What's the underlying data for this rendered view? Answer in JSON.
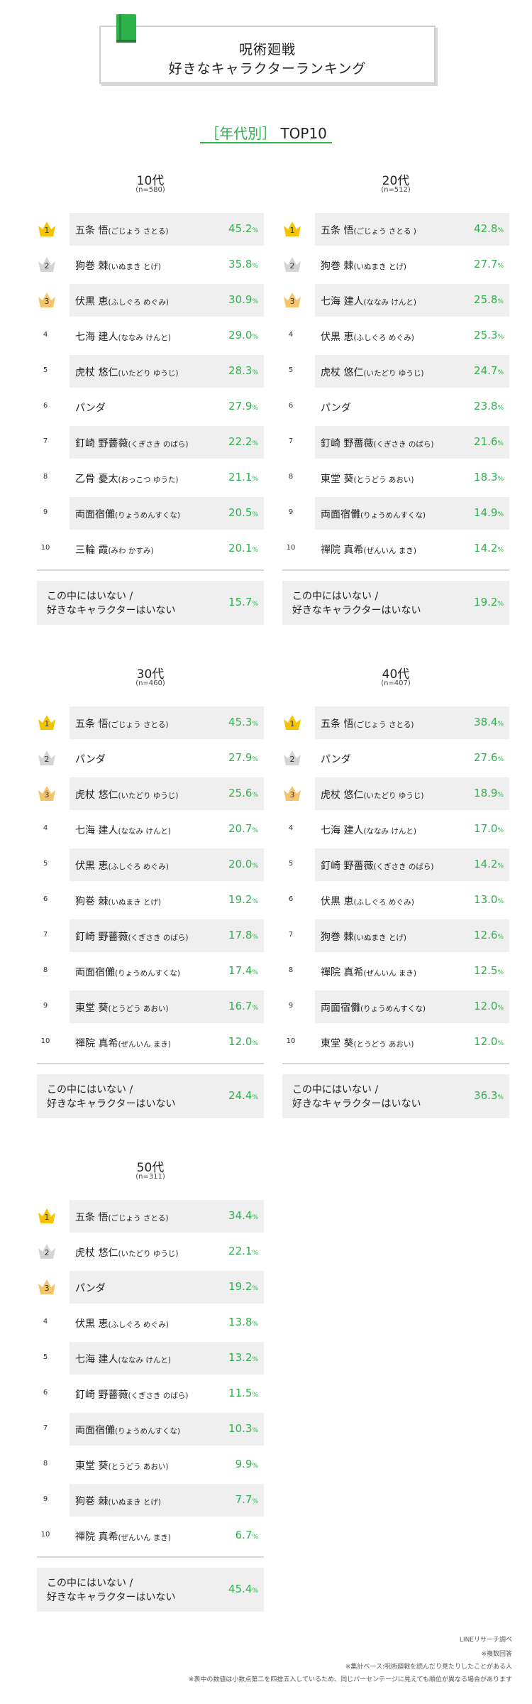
{
  "header": {
    "title_line1": "呪術廻戦",
    "title_line2": "好きなキャラクターランキング",
    "icon": "book-icon"
  },
  "section": {
    "bracket_open": "［",
    "label": "年代別",
    "bracket_close": "］",
    "top": "TOP10"
  },
  "colors": {
    "accent": "#2eb24b",
    "gold": "#f5c400",
    "silver": "#d4d4d4",
    "bronze": "#f3c46b",
    "row_shade": "#efefef"
  },
  "other_label_line1": "この中にはいない /",
  "other_label_line2": "好きなキャラクターはいない",
  "percent_unit": "%",
  "chart_data": [
    {
      "type": "table",
      "title": "10代",
      "n": "(n=580)",
      "rows": [
        {
          "rank": "1",
          "name": "五条 悟",
          "kana": "(ごじょう さとる)",
          "value": "45.2"
        },
        {
          "rank": "2",
          "name": "狗巻 棘",
          "kana": "(いぬまき とげ)",
          "value": "35.8"
        },
        {
          "rank": "3",
          "name": "伏黒 恵",
          "kana": "(ふしぐろ めぐみ)",
          "value": "30.9"
        },
        {
          "rank": "4",
          "name": "七海 建人",
          "kana": "(ななみ けんと)",
          "value": "29.0"
        },
        {
          "rank": "5",
          "name": "虎杖 悠仁",
          "kana": "(いたどり ゆうじ)",
          "value": "28.3"
        },
        {
          "rank": "6",
          "name": "パンダ",
          "kana": "",
          "value": "27.9"
        },
        {
          "rank": "7",
          "name": "釘崎 野薔薇",
          "kana": "(くぎさき のばら)",
          "value": "22.2"
        },
        {
          "rank": "8",
          "name": "乙骨 憂太",
          "kana": "(おっこつ ゆうた)",
          "value": "21.1"
        },
        {
          "rank": "9",
          "name": "両面宿儺",
          "kana": "(りょうめんすくな)",
          "value": "20.5"
        },
        {
          "rank": "10",
          "name": "三輪 霞",
          "kana": "(みわ かすみ)",
          "value": "20.1"
        }
      ],
      "other_value": "15.7"
    },
    {
      "type": "table",
      "title": "20代",
      "n": "(n=512)",
      "rows": [
        {
          "rank": "1",
          "name": "五条 悟",
          "kana": "(ごじょう さとる )",
          "value": "42.8"
        },
        {
          "rank": "2",
          "name": "狗巻 棘",
          "kana": "(いぬまき とげ)",
          "value": "27.7"
        },
        {
          "rank": "3",
          "name": "七海 建人",
          "kana": "(ななみ けんと)",
          "value": "25.8"
        },
        {
          "rank": "4",
          "name": "伏黒 恵",
          "kana": "(ふしぐろ めぐみ)",
          "value": "25.3"
        },
        {
          "rank": "5",
          "name": "虎杖 悠仁",
          "kana": "(いたどり ゆうじ)",
          "value": "24.7"
        },
        {
          "rank": "6",
          "name": "パンダ",
          "kana": "",
          "value": "23.8"
        },
        {
          "rank": "7",
          "name": "釘崎 野薔薇",
          "kana": "(くぎさき のばら)",
          "value": "21.6"
        },
        {
          "rank": "8",
          "name": "東堂 葵",
          "kana": "(とうどう あおい)",
          "value": "18.3"
        },
        {
          "rank": "9",
          "name": "両面宿儺",
          "kana": "(りょうめんすくな)",
          "value": "14.9"
        },
        {
          "rank": "10",
          "name": "禪院 真希",
          "kana": "(ぜんいん まき)",
          "value": "14.2"
        }
      ],
      "other_value": "19.2"
    },
    {
      "type": "table",
      "title": "30代",
      "n": "(n=460)",
      "rows": [
        {
          "rank": "1",
          "name": "五条 悟",
          "kana": "(ごじょう さとる)",
          "value": "45.3"
        },
        {
          "rank": "2",
          "name": "パンダ",
          "kana": "",
          "value": "27.9"
        },
        {
          "rank": "3",
          "name": "虎杖 悠仁",
          "kana": "(いたどり ゆうじ)",
          "value": "25.6"
        },
        {
          "rank": "4",
          "name": "七海 建人",
          "kana": "(ななみ けんと)",
          "value": "20.7"
        },
        {
          "rank": "5",
          "name": "伏黒 恵",
          "kana": "(ふしぐろ めぐみ)",
          "value": "20.0"
        },
        {
          "rank": "6",
          "name": "狗巻 棘",
          "kana": "(いぬまき とげ)",
          "value": "19.2"
        },
        {
          "rank": "7",
          "name": "釘崎 野薔薇",
          "kana": "(くぎさき のばら)",
          "value": "17.8"
        },
        {
          "rank": "8",
          "name": "両面宿儺",
          "kana": "(りょうめんすくな)",
          "value": "17.4"
        },
        {
          "rank": "9",
          "name": "東堂 葵",
          "kana": "(とうどう あおい)",
          "value": "16.7"
        },
        {
          "rank": "10",
          "name": "禪院 真希",
          "kana": "(ぜんいん まき)",
          "value": "12.0"
        }
      ],
      "other_value": "24.4"
    },
    {
      "type": "table",
      "title": "40代",
      "n": "(n=407)",
      "rows": [
        {
          "rank": "1",
          "name": "五条 悟",
          "kana": "(ごじょう さとる)",
          "value": "38.4"
        },
        {
          "rank": "2",
          "name": "パンダ",
          "kana": "",
          "value": "27.6"
        },
        {
          "rank": "3",
          "name": "虎杖 悠仁",
          "kana": "(いたどり ゆうじ)",
          "value": "18.9"
        },
        {
          "rank": "4",
          "name": "七海 建人",
          "kana": "(ななみ けんと)",
          "value": "17.0"
        },
        {
          "rank": "5",
          "name": "釘崎 野薔薇",
          "kana": "(くぎさき のばら)",
          "value": "14.2"
        },
        {
          "rank": "6",
          "name": "伏黒 恵",
          "kana": "(ふしぐろ めぐみ)",
          "value": "13.0"
        },
        {
          "rank": "7",
          "name": "狗巻 棘",
          "kana": "(いぬまき とげ)",
          "value": "12.6"
        },
        {
          "rank": "8",
          "name": "禪院 真希",
          "kana": "(ぜんいん まき)",
          "value": "12.5"
        },
        {
          "rank": "9",
          "name": "両面宿儺",
          "kana": "(りょうめんすくな)",
          "value": "12.0"
        },
        {
          "rank": "10",
          "name": "東堂 葵",
          "kana": "(とうどう あおい)",
          "value": "12.0"
        }
      ],
      "other_value": "36.3"
    },
    {
      "type": "table",
      "title": "50代",
      "n": "(n=311)",
      "rows": [
        {
          "rank": "1",
          "name": "五条 悟",
          "kana": "(ごじょう さとる)",
          "value": "34.4"
        },
        {
          "rank": "2",
          "name": "虎杖 悠仁",
          "kana": "(いたどり ゆうじ)",
          "value": "22.1"
        },
        {
          "rank": "3",
          "name": "パンダ",
          "kana": "",
          "value": "19.2"
        },
        {
          "rank": "4",
          "name": "伏黒 恵",
          "kana": "(ふしぐろ めぐみ)",
          "value": "13.8"
        },
        {
          "rank": "5",
          "name": "七海 建人",
          "kana": "(ななみ けんと)",
          "value": "13.2"
        },
        {
          "rank": "6",
          "name": "釘崎 野薔薇",
          "kana": "(くぎさき のばら)",
          "value": "11.5"
        },
        {
          "rank": "7",
          "name": "両面宿儺",
          "kana": "(りょうめんすくな)",
          "value": "10.3"
        },
        {
          "rank": "8",
          "name": "東堂 葵",
          "kana": "(とうどう あおい)",
          "value": "9.9"
        },
        {
          "rank": "9",
          "name": "狗巻 棘",
          "kana": "(いぬまき とげ)",
          "value": "7.7"
        },
        {
          "rank": "10",
          "name": "禪院 真希",
          "kana": "(ぜんいん まき)",
          "value": "6.7"
        }
      ],
      "other_value": "45.4"
    }
  ],
  "footnotes": [
    "LINEリサーチ調べ",
    "※複数回答",
    "※集計ベース:呪術廻戦を読んだり見たりしたことがある人",
    "※表中の数値は小数点第二を四捨五入しているため、同じパーセンテージに見えても順位が異なる場合があります"
  ]
}
